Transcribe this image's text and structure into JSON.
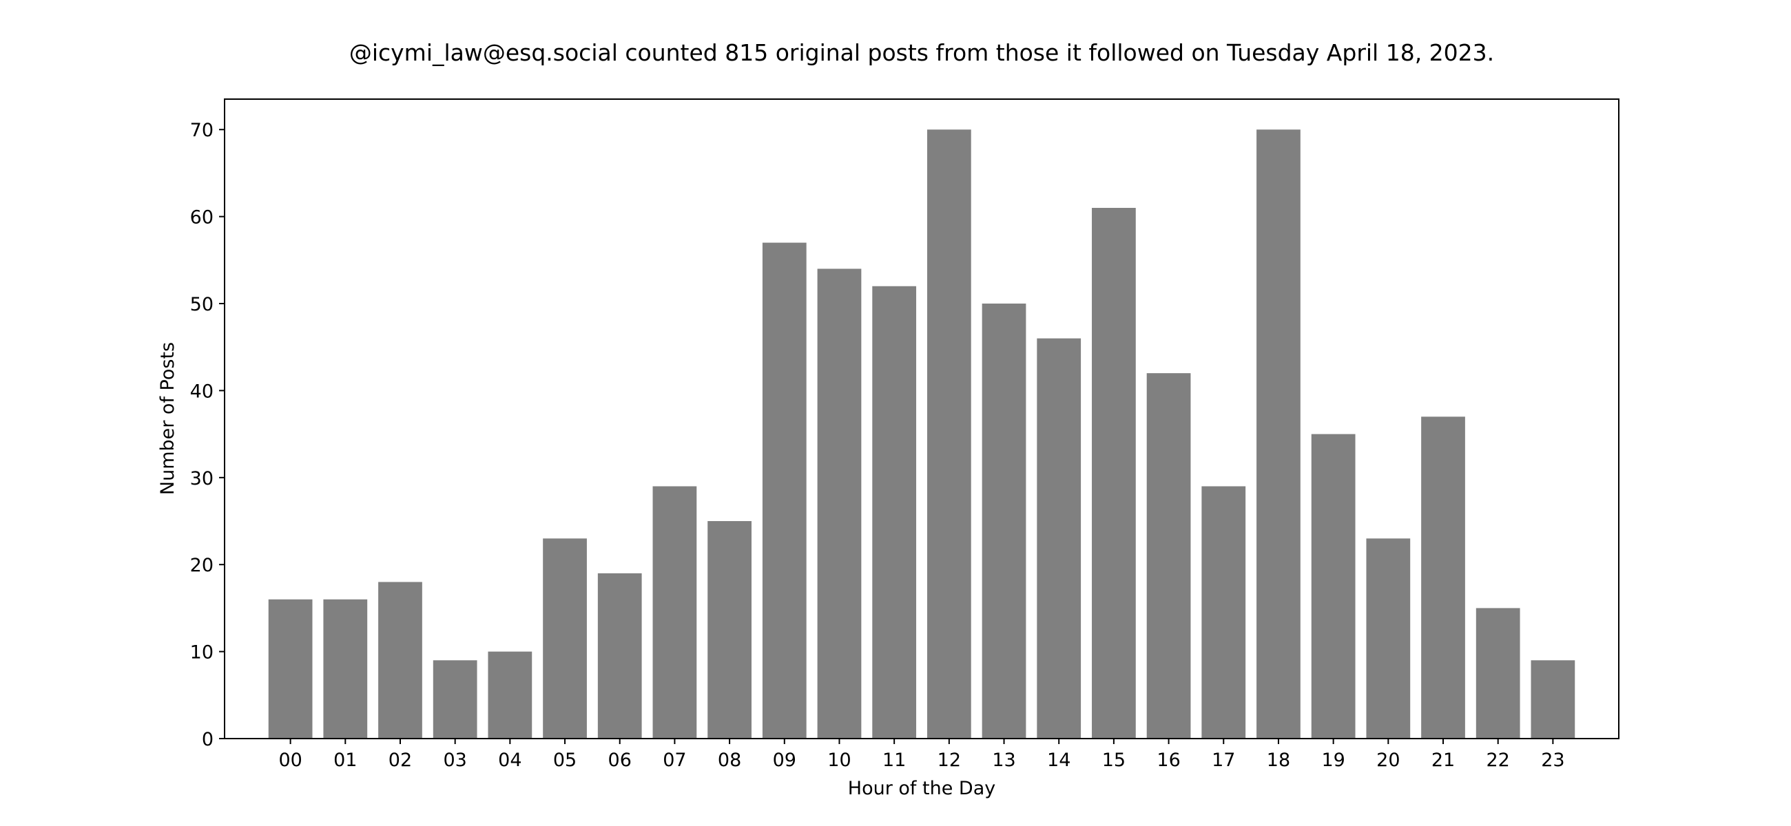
{
  "chart_data": {
    "type": "bar",
    "title": "@icymi_law@esq.social counted 815 original posts from those it followed on Tuesday April 18, 2023.",
    "xlabel": "Hour of the Day",
    "ylabel": "Number of Posts",
    "categories": [
      "00",
      "01",
      "02",
      "03",
      "04",
      "05",
      "06",
      "07",
      "08",
      "09",
      "10",
      "11",
      "12",
      "13",
      "14",
      "15",
      "16",
      "17",
      "18",
      "19",
      "20",
      "21",
      "22",
      "23"
    ],
    "values": [
      16,
      16,
      18,
      9,
      10,
      23,
      19,
      29,
      25,
      57,
      54,
      52,
      70,
      50,
      46,
      61,
      42,
      29,
      70,
      35,
      23,
      37,
      15,
      9
    ],
    "ylim": [
      0,
      73.5
    ],
    "yticks": [
      0,
      10,
      20,
      30,
      40,
      50,
      60,
      70
    ],
    "grid": false,
    "legend": "none",
    "bar_color": "#808080",
    "axes_color": "#000000"
  }
}
